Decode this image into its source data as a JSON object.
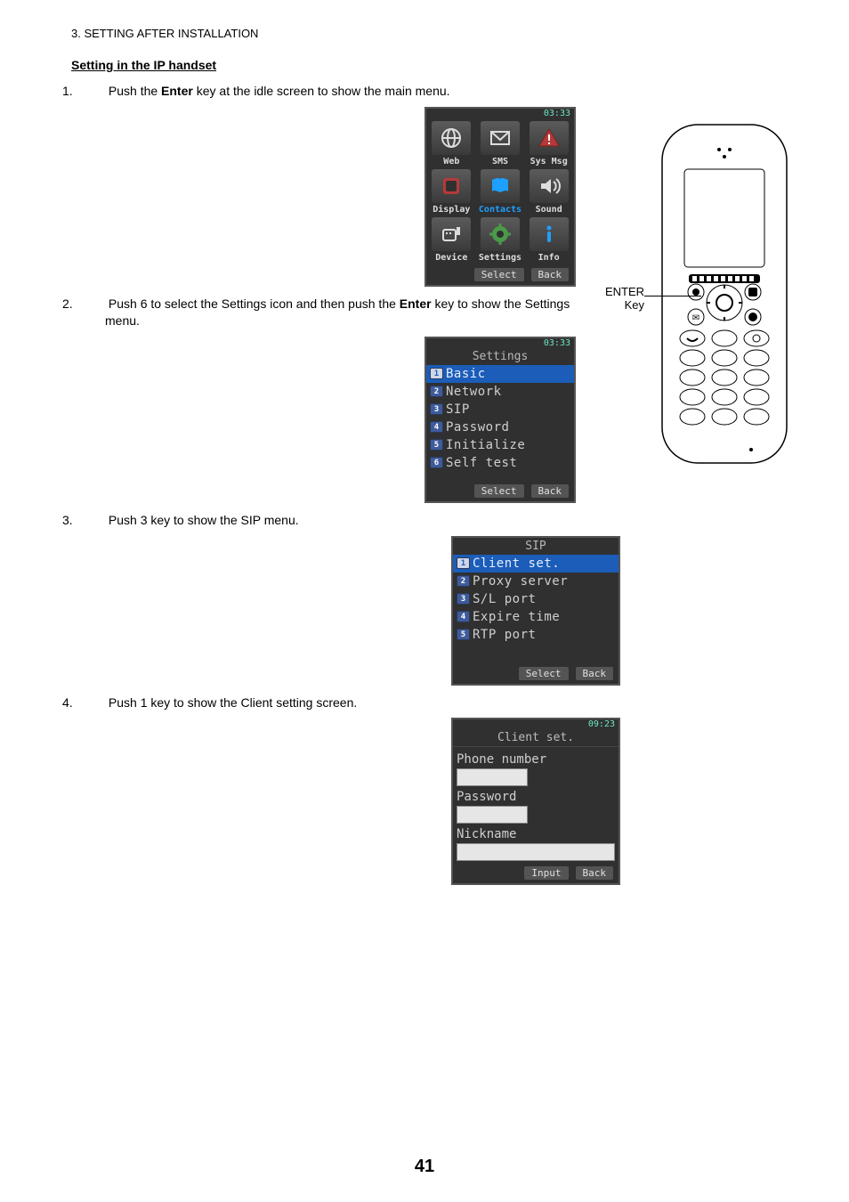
{
  "header": {
    "section_num": "3.  SETTING AFTER INSTALLATION"
  },
  "subsection": "Setting in the IP handset",
  "steps": {
    "s1": {
      "num": "1.",
      "text_before": "Push the ",
      "bold1": "Enter",
      "text_after": " key at the idle screen to show the main menu."
    },
    "s2": {
      "num": "2.",
      "text_before": "Push 6 to select the Settings icon and then push the ",
      "bold1": "Enter",
      "text_after": " key to show the Settings menu."
    },
    "s3": {
      "num": "3.",
      "text": "Push 3 key to show the SIP menu."
    },
    "s4": {
      "num": "4.",
      "text": "Push 1 key to show the Client setting screen."
    }
  },
  "main_menu": {
    "time": "03:33",
    "cells": [
      {
        "label": "Web",
        "icon": "globe",
        "selected": false
      },
      {
        "label": "SMS",
        "icon": "envelope",
        "selected": false
      },
      {
        "label": "Sys Msg",
        "icon": "warning",
        "selected": false
      },
      {
        "label": "Display",
        "icon": "frame",
        "selected": false
      },
      {
        "label": "Contacts",
        "icon": "book",
        "selected": true
      },
      {
        "label": "Sound",
        "icon": "speaker",
        "selected": false
      },
      {
        "label": "Device",
        "icon": "device",
        "selected": false
      },
      {
        "label": "Settings",
        "icon": "gear",
        "selected": false
      },
      {
        "label": "Info",
        "icon": "info",
        "selected": false
      }
    ],
    "softkeys": {
      "left": "Select",
      "right": "Back"
    }
  },
  "settings_menu": {
    "time": "03:33",
    "title": "Settings",
    "items": [
      {
        "n": "1",
        "label": "Basic",
        "selected": true
      },
      {
        "n": "2",
        "label": "Network",
        "selected": false
      },
      {
        "n": "3",
        "label": "SIP",
        "selected": false
      },
      {
        "n": "4",
        "label": "Password",
        "selected": false
      },
      {
        "n": "5",
        "label": "Initialize",
        "selected": false
      },
      {
        "n": "6",
        "label": "Self test",
        "selected": false
      }
    ],
    "softkeys": {
      "left": "Select",
      "right": "Back"
    }
  },
  "sip_menu": {
    "title": "SIP",
    "items": [
      {
        "n": "1",
        "label": "Client set.",
        "selected": true
      },
      {
        "n": "2",
        "label": "Proxy server",
        "selected": false
      },
      {
        "n": "3",
        "label": "S/L port",
        "selected": false
      },
      {
        "n": "4",
        "label": "Expire time",
        "selected": false
      },
      {
        "n": "5",
        "label": "RTP port",
        "selected": false
      }
    ],
    "softkeys": {
      "left": "Select",
      "right": "Back"
    }
  },
  "client_set": {
    "time": "09:23",
    "title": "Client set.",
    "fields": [
      {
        "label": "Phone number",
        "width": "short"
      },
      {
        "label": "Password",
        "width": "short"
      },
      {
        "label": "Nickname",
        "width": "full"
      }
    ],
    "softkeys": {
      "left": "Input",
      "right": "Back"
    }
  },
  "handset_label": {
    "line1": "ENTER",
    "line2": "Key"
  },
  "page_number": "41",
  "colors": {
    "sel_bg": "#1b5db8",
    "screen_bg": "#303030",
    "text": "#cfcfcf",
    "accent_icon_red": "#b43a3a",
    "accent_icon_blue": "#1ea0ff",
    "accent_icon_green": "#4a9a4a",
    "badge_bg": "#3e5b9b"
  }
}
